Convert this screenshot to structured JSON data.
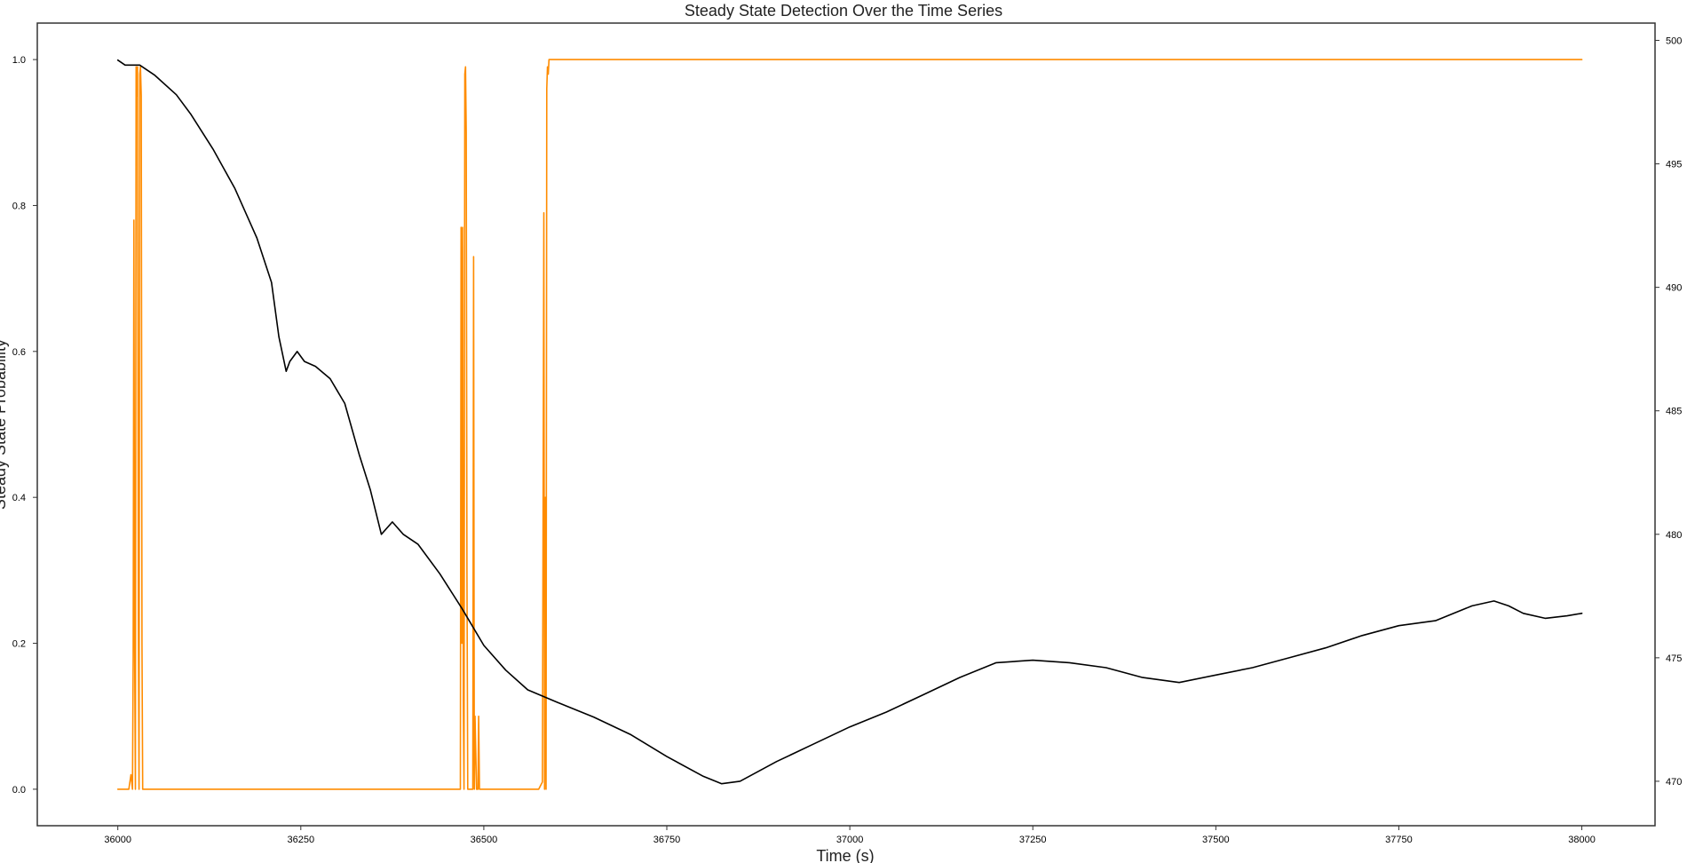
{
  "chart_data": {
    "type": "line",
    "title": "Steady State Detection Over the Time Series",
    "xlabel": "Time (s)",
    "ylabel": "Steady State Probability",
    "y2label": "",
    "xlim": [
      35890,
      38100
    ],
    "ylim": [
      -0.05,
      1.05
    ],
    "y2lim": [
      468.2,
      500.7
    ],
    "xticks": [
      36000,
      36250,
      36500,
      36750,
      37000,
      37250,
      37500,
      37750,
      38000
    ],
    "yticks": [
      0.0,
      0.2,
      0.4,
      0.6,
      0.8,
      1.0
    ],
    "y2ticks": [
      470,
      475,
      480,
      485,
      490,
      495,
      500
    ],
    "grid": false,
    "series": [
      {
        "axis": "left",
        "color": "#ff8c00",
        "x": [
          36000,
          36015,
          36018,
          36020,
          36021,
          36022,
          36023,
          36024,
          36025,
          36026,
          36027,
          36028,
          36029,
          36030,
          36031,
          36032,
          36033,
          36034,
          36035,
          36036,
          36038,
          36040,
          36080,
          36200,
          36260,
          36465,
          36468,
          36469,
          36470,
          36471,
          36472,
          36473,
          36474,
          36475,
          36476,
          36477,
          36478,
          36479,
          36480,
          36481,
          36483,
          36485,
          36486,
          36487,
          36488,
          36490,
          36492,
          36493,
          36494,
          36495,
          36497,
          36500,
          36560,
          36575,
          36580,
          36582,
          36583,
          36584,
          36585,
          36586,
          36587,
          36588,
          36589,
          36590,
          36592,
          36595,
          36600,
          36650,
          38000
        ],
        "values": [
          0.0,
          0.0,
          0.02,
          0.0,
          0.18,
          0.78,
          0.2,
          0.0,
          0.99,
          0.95,
          0.99,
          0.24,
          0.0,
          0.98,
          0.99,
          0.95,
          0.2,
          0.0,
          0.0,
          0.0,
          0.0,
          0.0,
          0.0,
          0.0,
          0.0,
          0.0,
          0.0,
          0.77,
          0.2,
          0.77,
          0.12,
          0.0,
          0.98,
          0.99,
          0.9,
          0.3,
          0.0,
          0.0,
          0.0,
          0.0,
          0.0,
          0.0,
          0.73,
          0.0,
          0.1,
          0.0,
          0.0,
          0.1,
          0.0,
          0.0,
          0.0,
          0.0,
          0.0,
          0.0,
          0.01,
          0.79,
          0.0,
          0.4,
          0.0,
          0.96,
          0.99,
          0.98,
          1.0,
          1.0,
          1.0,
          1.0,
          1.0,
          1.0,
          1.0
        ]
      },
      {
        "axis": "right",
        "color": "#000000",
        "x": [
          36000,
          36010,
          36030,
          36050,
          36080,
          36100,
          36130,
          36160,
          36190,
          36210,
          36220,
          36230,
          36235,
          36245,
          36255,
          36270,
          36290,
          36310,
          36330,
          36345,
          36360,
          36375,
          36390,
          36410,
          36440,
          36470,
          36500,
          36530,
          36560,
          36600,
          36650,
          36700,
          36750,
          36800,
          36825,
          36850,
          36900,
          36950,
          37000,
          37050,
          37100,
          37150,
          37200,
          37250,
          37300,
          37350,
          37400,
          37450,
          37500,
          37550,
          37600,
          37650,
          37700,
          37750,
          37800,
          37850,
          37880,
          37900,
          37920,
          37950,
          37980,
          38000
        ],
        "values": [
          499.2,
          499.0,
          499.0,
          498.6,
          497.8,
          497.0,
          495.6,
          494.0,
          492.0,
          490.2,
          488.0,
          486.6,
          487.0,
          487.4,
          487.0,
          486.8,
          486.3,
          485.3,
          483.2,
          481.8,
          480.0,
          480.5,
          480.0,
          479.6,
          478.4,
          477.0,
          475.5,
          474.5,
          473.7,
          473.2,
          472.6,
          471.9,
          471.0,
          470.2,
          469.9,
          470.0,
          470.8,
          471.5,
          472.2,
          472.8,
          473.5,
          474.2,
          474.8,
          474.9,
          474.8,
          474.6,
          474.2,
          474.0,
          474.3,
          474.6,
          475.0,
          475.4,
          475.9,
          476.3,
          476.5,
          477.1,
          477.3,
          477.1,
          476.8,
          476.6,
          476.7,
          476.8
        ]
      }
    ]
  }
}
